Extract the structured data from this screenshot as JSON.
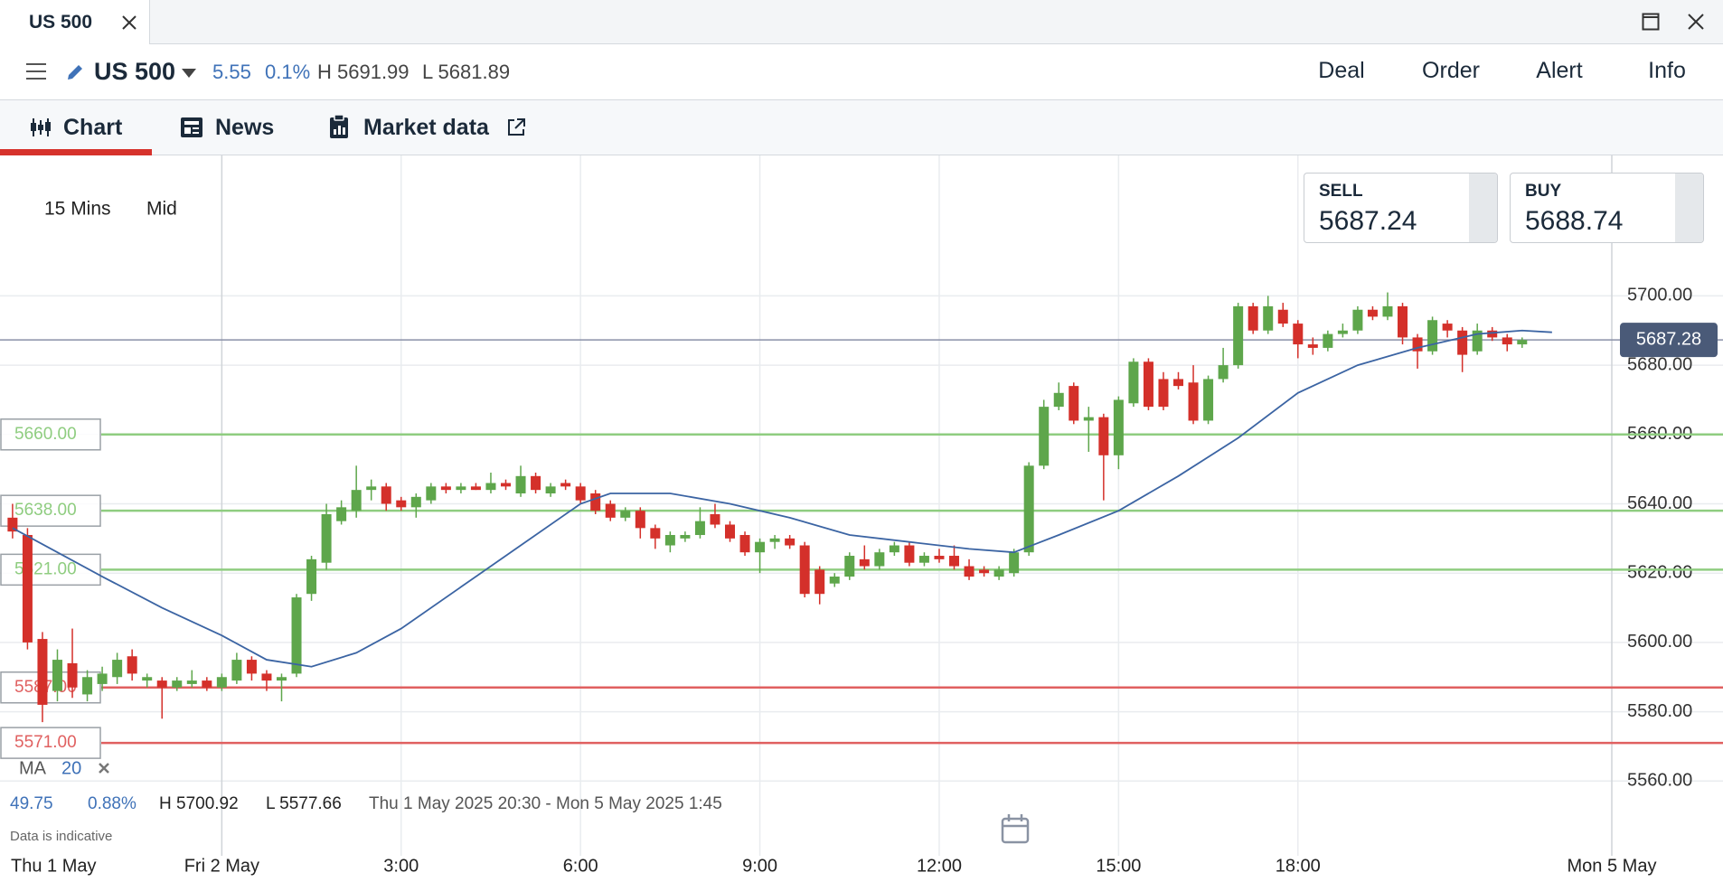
{
  "tab": {
    "title": "US 500"
  },
  "header": {
    "instrument": "US 500",
    "change": "5.55",
    "change_pct": "0.1%",
    "high": "H 5691.99",
    "low": "L 5681.89",
    "actions": [
      "Deal",
      "Order",
      "Alert",
      "Info"
    ]
  },
  "nav": {
    "tabs": [
      "Chart",
      "News",
      "Market data"
    ]
  },
  "quote": {
    "sell_label": "SELL",
    "sell": "5687.24",
    "buy_label": "BUY",
    "buy": "5688.74"
  },
  "chart_data": {
    "type": "candlestick",
    "interval": "15 Mins",
    "price": "Mid",
    "x": [
      -3.5,
      -3.25,
      -3,
      -2.75,
      -2.5,
      -2.25,
      -2,
      -1.75,
      -1.5,
      -1.25,
      -1,
      -0.75,
      -0.5,
      -0.25,
      0,
      0.25,
      0.5,
      0.75,
      1,
      1.25,
      1.5,
      1.75,
      2,
      2.25,
      2.5,
      2.75,
      3,
      3.25,
      3.5,
      3.75,
      4,
      4.25,
      4.5,
      4.75,
      5,
      5.25,
      5.5,
      5.75,
      6,
      6.25,
      6.5,
      6.75,
      7,
      7.25,
      7.5,
      7.75,
      8,
      8.25,
      8.5,
      8.75,
      9,
      9.25,
      9.5,
      9.75,
      10,
      10.25,
      10.5,
      10.75,
      11,
      11.25,
      11.5,
      11.75,
      12,
      12.25,
      12.5,
      12.75,
      13,
      13.25,
      13.5,
      13.75,
      14,
      14.25,
      14.5,
      14.75,
      15,
      15.25,
      15.5,
      15.75,
      16,
      16.25,
      16.5,
      16.75,
      17,
      17.25,
      17.5,
      17.75,
      18,
      18.25,
      18.5,
      18.75,
      19,
      19.25,
      19.5,
      19.75,
      20,
      20.25,
      20.5,
      20.75,
      21,
      21.25,
      21.5,
      21.75
    ],
    "ohlc": [
      [
        5636,
        5640,
        5630,
        5632
      ],
      [
        5631,
        5633,
        5598,
        5600
      ],
      [
        5601,
        5603,
        5577,
        5582
      ],
      [
        5586,
        5598,
        5583,
        5595
      ],
      [
        5594,
        5604,
        5584,
        5587
      ],
      [
        5585,
        5592,
        5583,
        5590
      ],
      [
        5588,
        5593,
        5586,
        5591
      ],
      [
        5590,
        5597,
        5588,
        5595
      ],
      [
        5596,
        5598,
        5589,
        5591
      ],
      [
        5589,
        5591,
        5587,
        5590
      ],
      [
        5589,
        5590,
        5578,
        5587
      ],
      [
        5587,
        5590,
        5586,
        5589
      ],
      [
        5588,
        5592,
        5587,
        5589
      ],
      [
        5589,
        5590,
        5586,
        5587
      ],
      [
        5587,
        5591,
        5586,
        5590
      ],
      [
        5589,
        5597,
        5588,
        5595
      ],
      [
        5595,
        5596,
        5589,
        5591
      ],
      [
        5591,
        5592,
        5586,
        5589
      ],
      [
        5589,
        5591,
        5583,
        5590
      ],
      [
        5591,
        5614,
        5590,
        5613
      ],
      [
        5614,
        5625,
        5612,
        5624
      ],
      [
        5623,
        5640,
        5621,
        5637
      ],
      [
        5635,
        5641,
        5634,
        5639
      ],
      [
        5638,
        5651,
        5636,
        5644
      ],
      [
        5644,
        5647,
        5641,
        5645
      ],
      [
        5645,
        5646,
        5638,
        5640
      ],
      [
        5641,
        5642,
        5638,
        5639
      ],
      [
        5639,
        5643,
        5636,
        5642
      ],
      [
        5641,
        5646,
        5640,
        5645
      ],
      [
        5645,
        5646,
        5643,
        5644
      ],
      [
        5644,
        5646,
        5643,
        5645
      ],
      [
        5645,
        5646,
        5644,
        5644
      ],
      [
        5644,
        5649,
        5643,
        5646
      ],
      [
        5646,
        5647,
        5644,
        5645
      ],
      [
        5643,
        5651,
        5642,
        5648
      ],
      [
        5648,
        5649,
        5643,
        5644
      ],
      [
        5643,
        5646,
        5642,
        5645
      ],
      [
        5646,
        5647,
        5644,
        5645
      ],
      [
        5645,
        5646,
        5640,
        5641
      ],
      [
        5643,
        5644,
        5637,
        5638
      ],
      [
        5640,
        5641,
        5635,
        5636
      ],
      [
        5636,
        5639,
        5635,
        5638
      ],
      [
        5638,
        5639,
        5630,
        5633
      ],
      [
        5633,
        5634,
        5627,
        5630
      ],
      [
        5628,
        5632,
        5626,
        5631
      ],
      [
        5630,
        5632,
        5629,
        5631
      ],
      [
        5631,
        5639,
        5630,
        5635
      ],
      [
        5637,
        5640,
        5633,
        5634
      ],
      [
        5634,
        5635,
        5629,
        5630
      ],
      [
        5631,
        5632,
        5625,
        5626
      ],
      [
        5626,
        5630,
        5620,
        5629
      ],
      [
        5629,
        5631,
        5627,
        5630
      ],
      [
        5630,
        5631,
        5627,
        5628
      ],
      [
        5628,
        5629,
        5613,
        5614
      ],
      [
        5621,
        5622,
        5611,
        5614
      ],
      [
        5617,
        5620,
        5616,
        5619
      ],
      [
        5619,
        5626,
        5618,
        5625
      ],
      [
        5624,
        5628,
        5621,
        5622
      ],
      [
        5622,
        5627,
        5621,
        5626
      ],
      [
        5626,
        5629,
        5625,
        5628
      ],
      [
        5628,
        5629,
        5622,
        5623
      ],
      [
        5623,
        5626,
        5622,
        5625
      ],
      [
        5625,
        5627,
        5623,
        5624
      ],
      [
        5625,
        5628,
        5621,
        5622
      ],
      [
        5622,
        5624,
        5618,
        5619
      ],
      [
        5621,
        5622,
        5619,
        5620
      ],
      [
        5619,
        5622,
        5618,
        5621
      ],
      [
        5620,
        5627,
        5619,
        5626
      ],
      [
        5626,
        5652,
        5625,
        5651
      ],
      [
        5651,
        5670,
        5650,
        5668
      ],
      [
        5668,
        5675,
        5667,
        5672
      ],
      [
        5674,
        5675,
        5663,
        5664
      ],
      [
        5664,
        5668,
        5655,
        5665
      ],
      [
        5665,
        5666,
        5641,
        5654
      ],
      [
        5654,
        5671,
        5650,
        5670
      ],
      [
        5669,
        5682,
        5668,
        5681
      ],
      [
        5681,
        5682,
        5667,
        5668
      ],
      [
        5676,
        5678,
        5667,
        5668
      ],
      [
        5676,
        5678,
        5673,
        5674
      ],
      [
        5675,
        5680,
        5663,
        5664
      ],
      [
        5664,
        5677,
        5663,
        5676
      ],
      [
        5676,
        5685,
        5675,
        5680
      ],
      [
        5680,
        5698,
        5679,
        5697
      ],
      [
        5697,
        5698,
        5689,
        5690
      ],
      [
        5690,
        5700,
        5689,
        5697
      ],
      [
        5696,
        5698,
        5691,
        5692
      ],
      [
        5692,
        5693,
        5682,
        5686
      ],
      [
        5686,
        5688,
        5683,
        5685
      ],
      [
        5685,
        5690,
        5684,
        5689
      ],
      [
        5689,
        5692,
        5688,
        5690
      ],
      [
        5690,
        5697,
        5689,
        5696
      ],
      [
        5696,
        5697,
        5693,
        5694
      ],
      [
        5694,
        5701,
        5693,
        5697
      ],
      [
        5697,
        5698,
        5686,
        5688
      ],
      [
        5688,
        5689,
        5679,
        5684
      ],
      [
        5684,
        5694,
        5683,
        5693
      ],
      [
        5692,
        5693,
        5688,
        5690
      ],
      [
        5690,
        5691,
        5678,
        5683
      ],
      [
        5684,
        5692,
        5683,
        5690
      ],
      [
        5690,
        5691,
        5687,
        5688
      ],
      [
        5688,
        5689,
        5684,
        5686
      ],
      [
        5686,
        5688,
        5685,
        5687.28
      ]
    ],
    "up_color": "#5ea64b",
    "down_color": "#d4302a",
    "xlim": [
      -3.71,
      25.11
    ],
    "xticks": [
      {
        "value": -3.5,
        "label": "Thu 1 May"
      },
      {
        "value": 0,
        "label": "Fri 2 May"
      },
      {
        "value": 3,
        "label": "3:00"
      },
      {
        "value": 6,
        "label": "6:00"
      },
      {
        "value": 9,
        "label": "9:00"
      },
      {
        "value": 12,
        "label": "12:00"
      },
      {
        "value": 15,
        "label": "15:00"
      },
      {
        "value": 18,
        "label": "18:00"
      },
      {
        "value": 23.25,
        "label": "Mon 5 May"
      }
    ],
    "ylim": [
      5540,
      5740
    ],
    "yticks": [
      {
        "value": 5560,
        "label": "5560.00"
      },
      {
        "value": 5580,
        "label": "5580.00"
      },
      {
        "value": 5600,
        "label": "5600.00"
      },
      {
        "value": 5620,
        "label": "5620.00"
      },
      {
        "value": 5640,
        "label": "5640.00"
      },
      {
        "value": 5660,
        "label": "5660.00"
      },
      {
        "value": 5680,
        "label": "5680.00"
      },
      {
        "value": 5700,
        "label": "5700.00"
      }
    ],
    "grid": true,
    "levels": [
      {
        "value": 5660,
        "label": "5660.00",
        "color": "#8fcd80"
      },
      {
        "value": 5638,
        "label": "5638.00",
        "color": "#8fcd80"
      },
      {
        "value": 5621,
        "label": "5621.00",
        "color": "#8fcd80"
      },
      {
        "value": 5587,
        "label": "5587.00",
        "color": "#e06060"
      },
      {
        "value": 5571,
        "label": "5571.00",
        "color": "#e06060"
      }
    ],
    "last_price": {
      "value": 5687.28,
      "label": "5687.28"
    },
    "ma": {
      "label": "MA",
      "period": "20",
      "color": "#3b64a3",
      "x": [
        -3.5,
        -2,
        -1,
        0,
        0.75,
        1.5,
        2.25,
        3,
        4,
        5,
        6,
        6.5,
        7.5,
        8.5,
        9.5,
        10.5,
        11.5,
        12.5,
        13.25,
        14,
        15,
        16,
        17,
        18,
        19,
        20,
        21,
        21.75,
        22.25
      ],
      "values": [
        5633,
        5619,
        5610,
        5602,
        5595,
        5593,
        5597,
        5604,
        5616,
        5628,
        5640,
        5643,
        5643,
        5640,
        5636,
        5631,
        5629,
        5627,
        5626,
        5631,
        5638,
        5648,
        5659,
        5672,
        5680,
        5685,
        5689,
        5690,
        5689.5
      ]
    },
    "stats": {
      "change": "49.75",
      "change_pct": "0.88%",
      "high": "H 5700.92",
      "low": "L 5577.66",
      "range": "Thu 1 May 2025 20:30 - Mon 5 May 2025 1:45"
    },
    "note": "Data is indicative"
  }
}
